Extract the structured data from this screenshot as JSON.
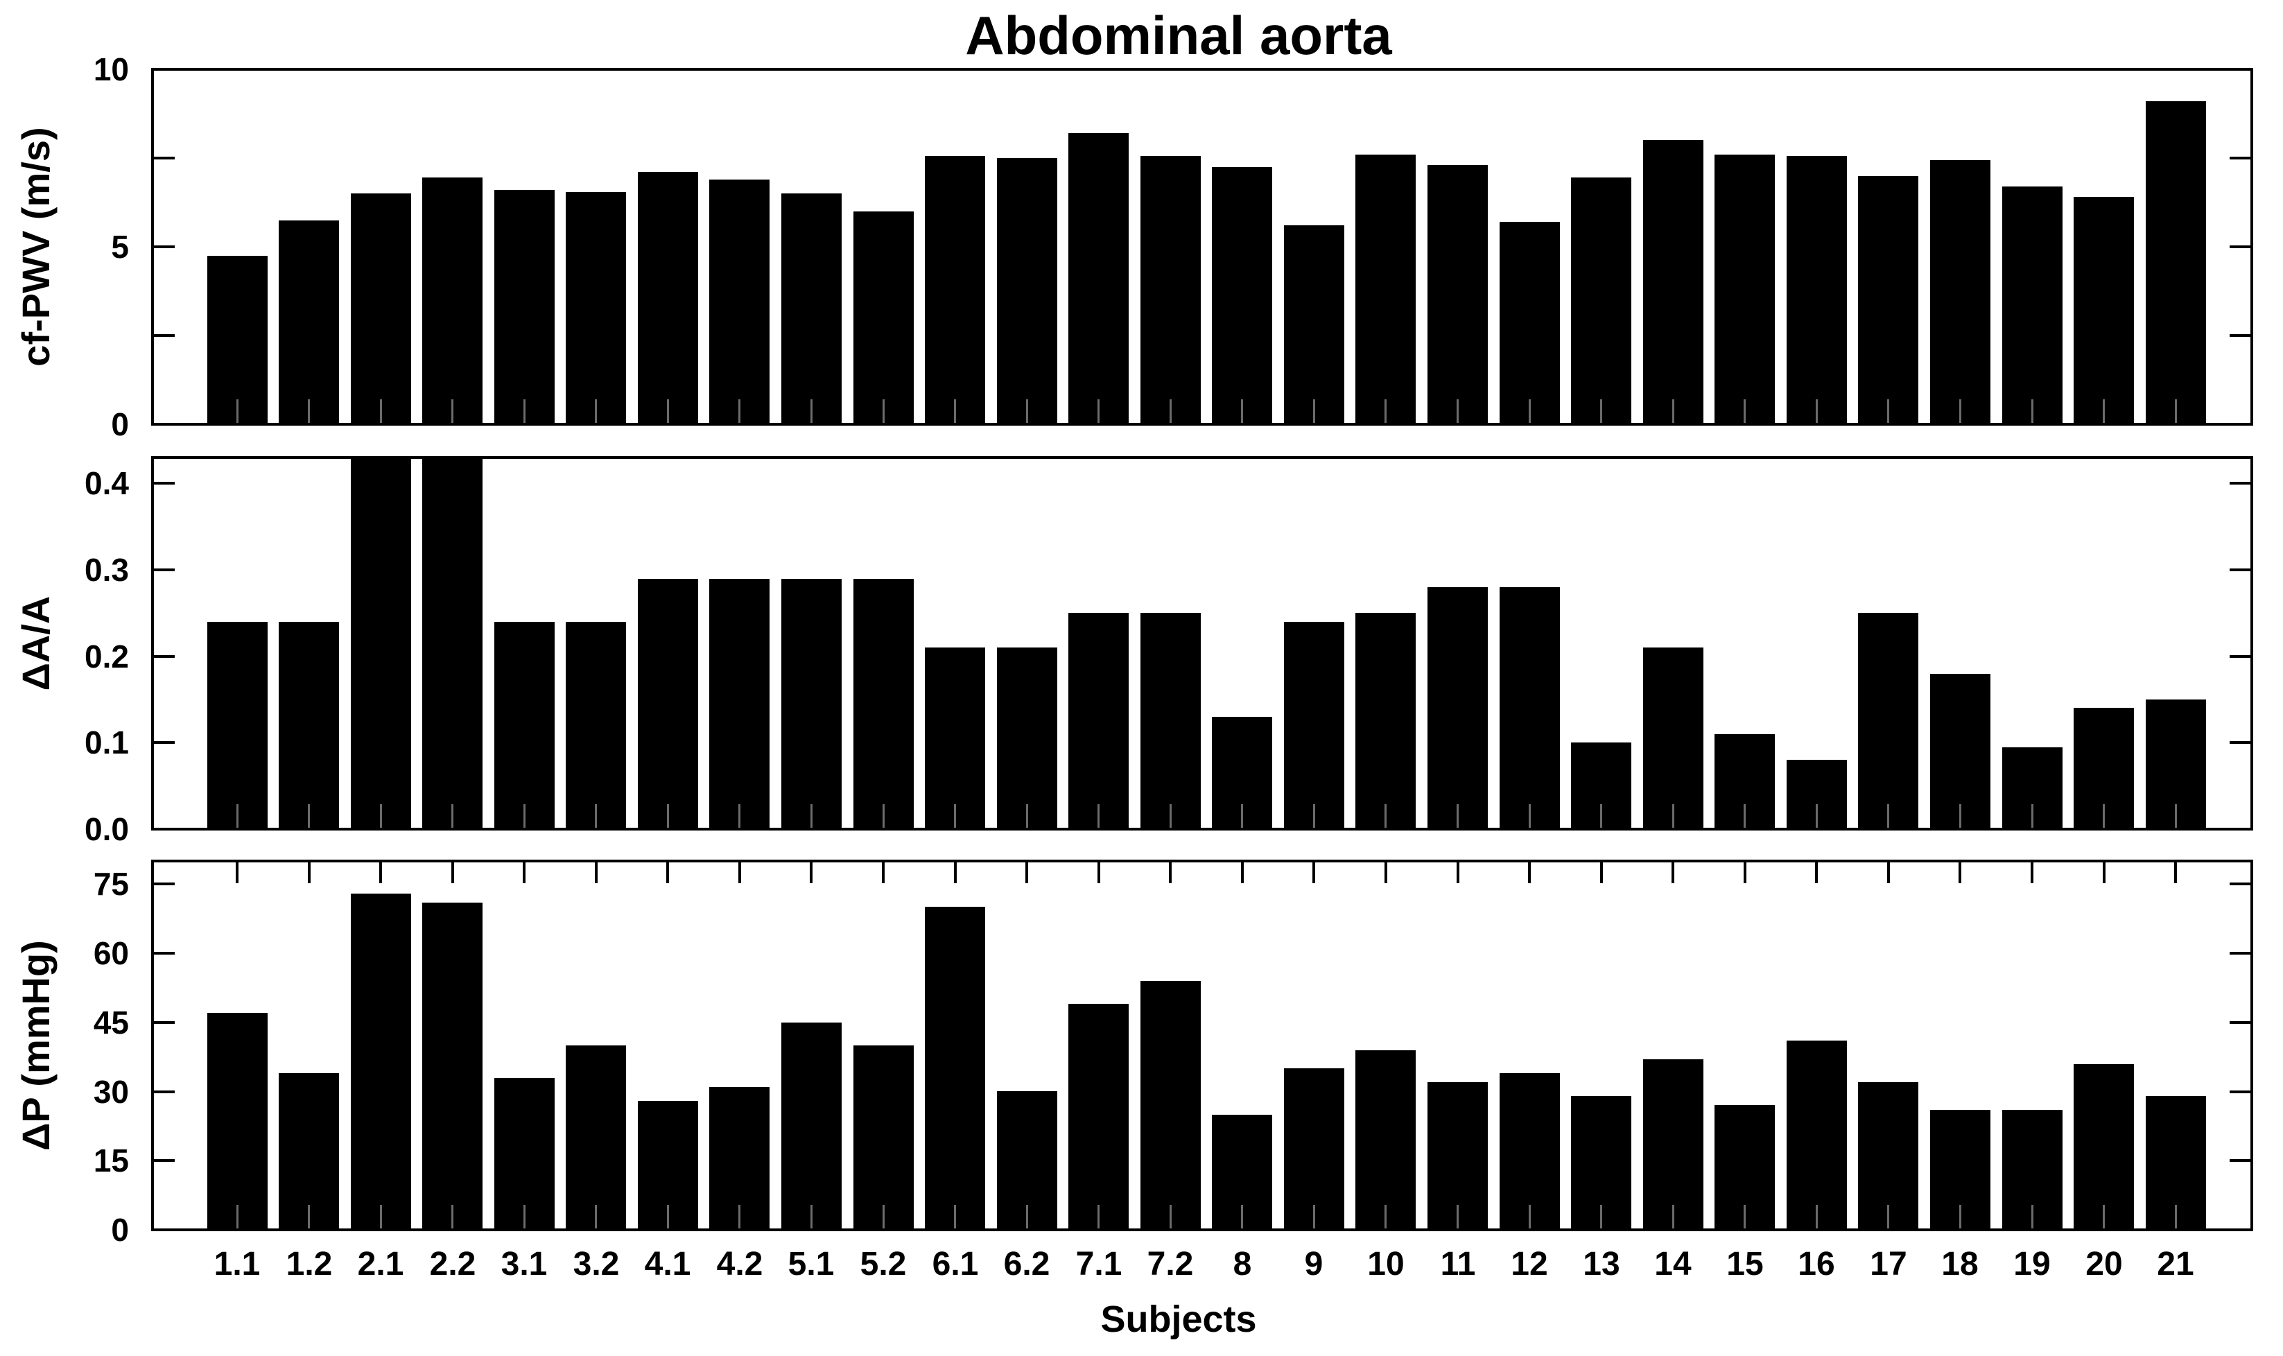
{
  "figure": {
    "background_color": "#ffffff",
    "axis_color": "#000000"
  },
  "chart_data": [
    {
      "type": "bar",
      "title": "Abdominal aorta",
      "ylabel": "cf-PWV (m/s)",
      "ylim": [
        0,
        10
      ],
      "bar_color": "#000000",
      "grid": false,
      "legend": false,
      "yticks": [
        {
          "value": 0,
          "label": "0"
        },
        {
          "value": 2.5,
          "label": ""
        },
        {
          "value": 5,
          "label": "5"
        },
        {
          "value": 7.5,
          "label": ""
        },
        {
          "value": 10,
          "label": "10"
        }
      ],
      "categories": [
        "1.1",
        "1.2",
        "2.1",
        "2.2",
        "3.1",
        "3.2",
        "4.1",
        "4.2",
        "5.1",
        "5.2",
        "6.1",
        "6.2",
        "7.1",
        "7.2",
        "8",
        "9",
        "10",
        "11",
        "12",
        "13",
        "14",
        "15",
        "16",
        "17",
        "18",
        "19",
        "20",
        "21"
      ],
      "values": [
        4.75,
        5.75,
        6.5,
        6.95,
        6.6,
        6.55,
        7.1,
        6.9,
        6.5,
        6.0,
        7.55,
        7.5,
        8.2,
        7.55,
        7.25,
        5.6,
        7.6,
        7.3,
        5.7,
        6.95,
        8.0,
        7.6,
        7.55,
        7.0,
        7.45,
        6.7,
        6.4,
        9.1
      ]
    },
    {
      "type": "bar",
      "ylabel": "ΔA/A",
      "ylim": [
        0,
        0.43
      ],
      "bar_color": "#000000",
      "grid": false,
      "legend": false,
      "note": "Bars for subjects 2.1 and 2.2 reach the top of the axis (clipped at ~0.43, i.e. above the 0.4 tick)",
      "yticks": [
        {
          "value": 0.0,
          "label": "0.0"
        },
        {
          "value": 0.1,
          "label": "0.1"
        },
        {
          "value": 0.2,
          "label": "0.2"
        },
        {
          "value": 0.3,
          "label": "0.3"
        },
        {
          "value": 0.4,
          "label": "0.4"
        }
      ],
      "categories": [
        "1.1",
        "1.2",
        "2.1",
        "2.2",
        "3.1",
        "3.2",
        "4.1",
        "4.2",
        "5.1",
        "5.2",
        "6.1",
        "6.2",
        "7.1",
        "7.2",
        "8",
        "9",
        "10",
        "11",
        "12",
        "13",
        "14",
        "15",
        "16",
        "17",
        "18",
        "19",
        "20",
        "21"
      ],
      "values": [
        0.24,
        0.24,
        0.43,
        0.43,
        0.24,
        0.24,
        0.29,
        0.29,
        0.29,
        0.29,
        0.21,
        0.21,
        0.25,
        0.25,
        0.13,
        0.24,
        0.25,
        0.28,
        0.28,
        0.1,
        0.21,
        0.11,
        0.08,
        0.25,
        0.18,
        0.095,
        0.14,
        0.15
      ]
    },
    {
      "type": "bar",
      "ylabel": "ΔP (mmHg)",
      "xlabel": "Subjects",
      "ylim": [
        0,
        80
      ],
      "bar_color": "#000000",
      "grid": false,
      "legend": false,
      "yticks": [
        {
          "value": 0,
          "label": "0"
        },
        {
          "value": 15,
          "label": "15"
        },
        {
          "value": 30,
          "label": "30"
        },
        {
          "value": 45,
          "label": "45"
        },
        {
          "value": 60,
          "label": "60"
        },
        {
          "value": 75,
          "label": "75"
        }
      ],
      "categories": [
        "1.1",
        "1.2",
        "2.1",
        "2.2",
        "3.1",
        "3.2",
        "4.1",
        "4.2",
        "5.1",
        "5.2",
        "6.1",
        "6.2",
        "7.1",
        "7.2",
        "8",
        "9",
        "10",
        "11",
        "12",
        "13",
        "14",
        "15",
        "16",
        "17",
        "18",
        "19",
        "20",
        "21"
      ],
      "values": [
        47,
        34,
        73,
        71,
        33,
        40,
        28,
        31,
        45,
        40,
        70,
        30,
        49,
        54,
        25,
        35,
        39,
        32,
        34,
        29,
        37,
        27,
        41,
        32,
        26,
        26,
        36,
        29
      ]
    }
  ]
}
